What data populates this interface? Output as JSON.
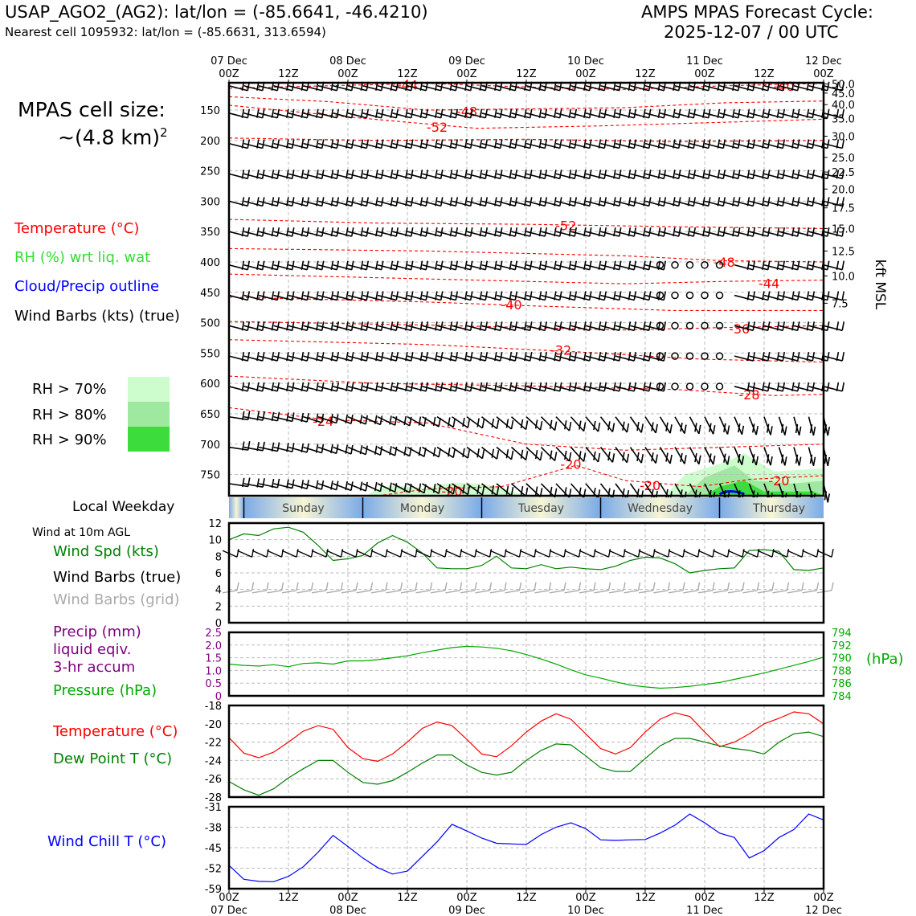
{
  "header": {
    "station_line": "USAP_AGO2_(AG2): lat/lon = (-85.6641, -46.4210)",
    "nearest_line": "Nearest cell 1095932: lat/lon = (-85.6631, 313.6594)",
    "model_line": "AMPS MPAS Forecast Cycle:",
    "cycle_line": "2025-12-07 / 00 UTC"
  },
  "sidebar": {
    "cell_size_label": "MPAS cell size:",
    "cell_size_value": "~(4.8 km)",
    "cell_size_exp": "2",
    "legend_temperature": "Temperature (°C)",
    "legend_rh": "RH (%) wrt liq. wat",
    "legend_cloud": "Cloud/Precip outline",
    "legend_barbs": "Wind Barbs (kts) (true)",
    "rh_levels": [
      {
        "label": "RH > 70%",
        "color": "#cdfccd"
      },
      {
        "label": "RH > 80%",
        "color": "#9fe89f"
      },
      {
        "label": "RH > 90%",
        "color": "#3cdc3c"
      }
    ],
    "local_weekday_label": "Local Weekday",
    "wind_10m_label": "Wind at 10m AGL",
    "legend_wind_spd": "Wind Spd (kts)",
    "legend_wind_barbs_true": "Wind Barbs (true)",
    "legend_wind_barbs_grid": "Wind Barbs (grid)",
    "legend_precip_1": "Precip (mm)",
    "legend_precip_2": "liquid eqiv.",
    "legend_precip_3": "3-hr accum",
    "legend_pressure": "Pressure (hPa)",
    "legend_temp2": "Temperature (°C)",
    "legend_dewpoint": "Dew Point T (°C)",
    "legend_windchill": "Wind Chill T (°C)"
  },
  "colors": {
    "temperature": "#ff0000",
    "rh": "#33dd33",
    "cloud": "#0000ff",
    "windspeed": "#008000",
    "pressure": "#00aa00",
    "precip": "#800080",
    "dewpoint": "#008000",
    "windchill": "#0000ff",
    "grid_barb": "#aaaaaa"
  },
  "chart_data": {
    "time_axis": {
      "range_hours": [
        0,
        120
      ],
      "top_labels": [
        {
          "h": 0,
          "l1": "07 Dec",
          "l2": "00Z"
        },
        {
          "h": 12,
          "l1": "",
          "l2": "12Z"
        },
        {
          "h": 24,
          "l1": "08 Dec",
          "l2": "00Z"
        },
        {
          "h": 36,
          "l1": "",
          "l2": "12Z"
        },
        {
          "h": 48,
          "l1": "09 Dec",
          "l2": "00Z"
        },
        {
          "h": 60,
          "l1": "",
          "l2": "12Z"
        },
        {
          "h": 72,
          "l1": "10 Dec",
          "l2": "00Z"
        },
        {
          "h": 84,
          "l1": "",
          "l2": "12Z"
        },
        {
          "h": 96,
          "l1": "11 Dec",
          "l2": "00Z"
        },
        {
          "h": 108,
          "l1": "",
          "l2": "12Z"
        },
        {
          "h": 120,
          "l1": "12 Dec",
          "l2": "00Z"
        }
      ]
    },
    "profile": {
      "type": "heatmap",
      "y_pressure_ticks": [
        150,
        200,
        250,
        300,
        350,
        400,
        450,
        500,
        550,
        600,
        650,
        700,
        750
      ],
      "y_pressure_range": [
        105,
        785
      ],
      "kft_ticks": [
        {
          "label": "50.0",
          "p": 107
        },
        {
          "label": "45.0",
          "p": 122
        },
        {
          "label": "40.0",
          "p": 141
        },
        {
          "label": "35.0",
          "p": 164
        },
        {
          "label": "30.0",
          "p": 193
        },
        {
          "label": "25.0",
          "p": 228
        },
        {
          "label": "22.5",
          "p": 252
        },
        {
          "label": "20.0",
          "p": 280
        },
        {
          "label": "17.5",
          "p": 311
        },
        {
          "label": "15.0",
          "p": 345
        },
        {
          "label": "12.5",
          "p": 382
        },
        {
          "label": "10.0",
          "p": 423
        },
        {
          "label": "7.5",
          "p": 468
        }
      ],
      "y_right_label": "kft MSL",
      "temperature_contours": [
        {
          "label": "-44",
          "h": 36,
          "p": 108
        },
        {
          "label": "-40",
          "h": 112,
          "p": 110
        },
        {
          "label": "-48",
          "h": 48,
          "p": 152
        },
        {
          "label": "-52",
          "h": 42,
          "p": 178
        },
        {
          "label": "-52",
          "h": 68,
          "p": 340
        },
        {
          "label": "-48",
          "h": 100,
          "p": 400
        },
        {
          "label": "-44",
          "h": 109,
          "p": 435
        },
        {
          "label": "-40",
          "h": 57,
          "p": 470
        },
        {
          "label": "-36",
          "h": 103,
          "p": 510
        },
        {
          "label": "-32",
          "h": 67,
          "p": 545
        },
        {
          "label": "-28",
          "h": 105,
          "p": 618
        },
        {
          "label": "-24",
          "h": 19,
          "p": 662
        },
        {
          "label": "-20",
          "h": 69,
          "p": 733
        },
        {
          "label": "-20",
          "h": 45,
          "p": 777
        },
        {
          "label": "-20",
          "h": 85,
          "p": 768
        },
        {
          "label": "-20",
          "h": 111,
          "p": 760
        }
      ],
      "barb_levels": [
        110,
        155,
        205,
        255,
        300,
        350,
        405,
        455,
        505,
        555,
        605,
        655,
        705,
        765
      ]
    },
    "weekdays": [
      "Sunday",
      "Monday",
      "Tuesday",
      "Wednesday",
      "Thursday"
    ],
    "wind_panel": {
      "type": "line",
      "ylim": [
        0,
        12
      ],
      "yticks": [
        "0",
        "2",
        "4",
        "6",
        "8",
        "10",
        "12"
      ],
      "x": [
        0,
        3,
        6,
        9,
        12,
        15,
        18,
        21,
        24,
        27,
        30,
        33,
        36,
        39,
        42,
        45,
        48,
        51,
        54,
        57,
        60,
        63,
        66,
        69,
        72,
        75,
        78,
        81,
        84,
        87,
        90,
        93,
        96,
        99,
        102,
        105,
        108,
        111,
        114,
        117,
        120
      ],
      "wind_speed": [
        10,
        10.7,
        10.5,
        11.3,
        11.5,
        10.9,
        9.3,
        7.5,
        7.7,
        8.1,
        9.6,
        10.5,
        9.7,
        8.4,
        6.6,
        6.5,
        6.5,
        6.9,
        8.0,
        6.6,
        6.5,
        7.0,
        6.5,
        6.7,
        6.5,
        6.4,
        6.8,
        7.5,
        7.9,
        7.8,
        7.1,
        6.0,
        6.3,
        6.5,
        6.6,
        8.7,
        8.8,
        8.6,
        6.4,
        6.3,
        6.6
      ]
    },
    "pressure_panel": {
      "type": "line",
      "precip_ylim": [
        0,
        2.5
      ],
      "precip_ticks": [
        "0",
        "0.5",
        "1.0",
        "1.5",
        "2.0",
        "2.5"
      ],
      "pressure_ylim": [
        784,
        794
      ],
      "pressure_ticks": [
        "784",
        "786",
        "788",
        "790",
        "792",
        "794"
      ],
      "pressure_unit": "(hPa)",
      "x": [
        0,
        3,
        6,
        9,
        12,
        15,
        18,
        21,
        24,
        27,
        30,
        33,
        36,
        39,
        42,
        45,
        48,
        51,
        54,
        57,
        60,
        63,
        66,
        69,
        72,
        75,
        78,
        81,
        84,
        87,
        90,
        93,
        96,
        99,
        102,
        105,
        108,
        111,
        114,
        117,
        120
      ],
      "pressure": [
        789.0,
        788.8,
        788.7,
        788.9,
        788.6,
        789.1,
        789.2,
        789.0,
        789.5,
        789.5,
        789.7,
        790.0,
        790.3,
        790.8,
        791.2,
        791.6,
        791.8,
        791.7,
        791.5,
        791.1,
        790.5,
        789.8,
        789.0,
        788.1,
        787.3,
        786.8,
        786.2,
        785.7,
        785.4,
        785.2,
        785.3,
        785.5,
        785.8,
        786.1,
        786.6,
        787.1,
        787.6,
        788.2,
        788.8,
        789.4,
        790.1
      ],
      "precip": [
        0,
        0,
        0,
        0,
        0,
        0,
        0,
        0,
        0,
        0,
        0,
        0,
        0,
        0,
        0,
        0,
        0,
        0,
        0,
        0,
        0,
        0,
        0,
        0,
        0,
        0,
        0,
        0,
        0,
        0,
        0,
        0,
        0,
        0,
        0,
        0,
        0,
        0,
        0,
        0,
        0
      ]
    },
    "temp_panel": {
      "type": "line",
      "ylim": [
        -28,
        -18
      ],
      "yticks": [
        "-28",
        "-26",
        "-24",
        "-22",
        "-20",
        "-18"
      ],
      "x": [
        0,
        3,
        6,
        9,
        12,
        15,
        18,
        21,
        24,
        27,
        30,
        33,
        36,
        39,
        42,
        45,
        48,
        51,
        54,
        57,
        60,
        63,
        66,
        69,
        72,
        75,
        78,
        81,
        84,
        87,
        90,
        93,
        96,
        99,
        102,
        105,
        108,
        111,
        114,
        117,
        120
      ],
      "temperature": [
        -21.5,
        -23.2,
        -23.7,
        -23.1,
        -22.0,
        -20.8,
        -20.2,
        -20.6,
        -22.6,
        -23.8,
        -24.1,
        -23.3,
        -22.0,
        -20.5,
        -19.8,
        -20.2,
        -21.7,
        -23.3,
        -23.6,
        -22.4,
        -20.9,
        -19.7,
        -18.9,
        -19.5,
        -21.1,
        -22.7,
        -23.3,
        -22.6,
        -20.9,
        -19.5,
        -18.8,
        -19.2,
        -20.9,
        -22.5,
        -22.0,
        -21.1,
        -20.0,
        -19.4,
        -18.7,
        -18.9,
        -20.0
      ],
      "dewpoint": [
        -26.3,
        -27.2,
        -27.8,
        -27.1,
        -25.9,
        -24.9,
        -24.0,
        -24.0,
        -25.3,
        -26.4,
        -26.6,
        -26.2,
        -25.3,
        -24.3,
        -23.4,
        -23.4,
        -24.5,
        -25.3,
        -25.6,
        -25.3,
        -24.0,
        -22.9,
        -22.2,
        -22.3,
        -23.5,
        -24.8,
        -25.2,
        -25.2,
        -23.8,
        -22.4,
        -21.6,
        -21.6,
        -22.0,
        -22.4,
        -22.7,
        -22.9,
        -23.3,
        -22.0,
        -21.1,
        -20.9,
        -21.4
      ]
    },
    "chill_panel": {
      "type": "line",
      "ylim": [
        -59,
        -31
      ],
      "yticks": [
        "-59",
        "-52",
        "-45",
        "-38",
        "-31"
      ],
      "x": [
        0,
        3,
        6,
        9,
        12,
        15,
        18,
        21,
        24,
        27,
        30,
        33,
        36,
        39,
        42,
        45,
        48,
        51,
        54,
        57,
        60,
        63,
        66,
        69,
        72,
        75,
        78,
        81,
        84,
        87,
        90,
        93,
        96,
        99,
        102,
        105,
        108,
        111,
        114,
        117,
        120
      ],
      "windchill": [
        -51.0,
        -55.8,
        -56.5,
        -56.6,
        -54.8,
        -51.5,
        -46.5,
        -40.8,
        -44.6,
        -48.5,
        -51.8,
        -54.0,
        -53.0,
        -48.0,
        -43.0,
        -37.0,
        -39.3,
        -41.7,
        -43.5,
        -43.7,
        -43.9,
        -40.5,
        -38.0,
        -36.5,
        -38.5,
        -42.3,
        -42.5,
        -42.3,
        -42.2,
        -40.0,
        -37.3,
        -33.5,
        -36.5,
        -40.0,
        -41.5,
        -48.5,
        -46.0,
        -41.5,
        -38.8,
        -33.5,
        -35.5
      ]
    },
    "bottom_axis": {
      "labels": [
        {
          "h": 0,
          "l1": "00Z",
          "l2": "07 Dec"
        },
        {
          "h": 12,
          "l1": "12Z",
          "l2": ""
        },
        {
          "h": 24,
          "l1": "00Z",
          "l2": "08 Dec"
        },
        {
          "h": 36,
          "l1": "12Z",
          "l2": ""
        },
        {
          "h": 48,
          "l1": "00Z",
          "l2": "09 Dec"
        },
        {
          "h": 60,
          "l1": "12Z",
          "l2": ""
        },
        {
          "h": 72,
          "l1": "00Z",
          "l2": "10 Dec"
        },
        {
          "h": 84,
          "l1": "12Z",
          "l2": ""
        },
        {
          "h": 96,
          "l1": "00Z",
          "l2": "11 Dec"
        },
        {
          "h": 108,
          "l1": "12Z",
          "l2": ""
        },
        {
          "h": 120,
          "l1": "00Z",
          "l2": "12 Dec"
        }
      ]
    }
  }
}
